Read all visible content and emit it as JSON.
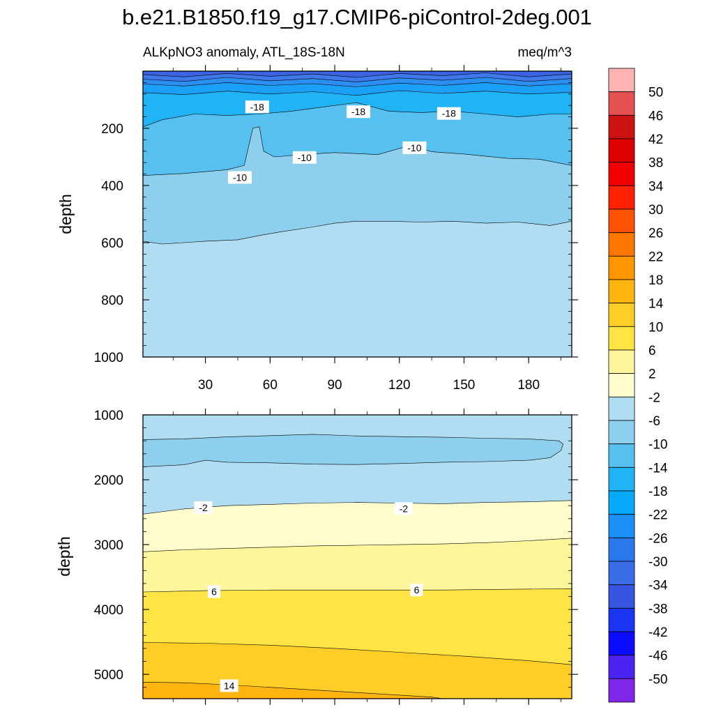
{
  "figure": {
    "title": "b.e21.B1850.f19_g17.CMIP6-piControl-2deg.001",
    "subtitle_left": "ALKpNO3 anomaly, ATL_18S-18N",
    "subtitle_right": "meq/m^3"
  },
  "chart_data": [
    {
      "type": "heatmap",
      "panel": "upper",
      "title": "ALKpNO3 anomaly, ATL_18S-18N",
      "units": "meq/m^3",
      "xlabel": "",
      "ylabel": "depth",
      "xlim": [
        1,
        200
      ],
      "ylim": [
        0,
        1000
      ],
      "y_inverted": true,
      "xticks": [
        30,
        60,
        90,
        120,
        150,
        180
      ],
      "yticks": [
        200,
        400,
        600,
        800,
        1000
      ],
      "bands": [
        {
          "lower": -38,
          "upper": -34,
          "color": "#3C63E0",
          "top": [
            [
              1,
              0
            ],
            [
              200,
              0
            ]
          ],
          "bottom": [
            [
              1,
              12
            ],
            [
              20,
              20
            ],
            [
              40,
              8
            ],
            [
              60,
              18
            ],
            [
              80,
              10
            ],
            [
              100,
              22
            ],
            [
              120,
              8
            ],
            [
              140,
              16
            ],
            [
              160,
              6
            ],
            [
              180,
              20
            ],
            [
              200,
              10
            ]
          ]
        },
        {
          "lower": -34,
          "upper": -30,
          "color": "#3F78EA",
          "top": [
            [
              1,
              0
            ],
            [
              200,
              0
            ]
          ],
          "bottom": [
            [
              1,
              28
            ],
            [
              20,
              36
            ],
            [
              40,
              22
            ],
            [
              60,
              34
            ],
            [
              80,
              26
            ],
            [
              100,
              38
            ],
            [
              120,
              24
            ],
            [
              140,
              32
            ],
            [
              160,
              22
            ],
            [
              180,
              36
            ],
            [
              200,
              26
            ]
          ]
        },
        {
          "lower": -30,
          "upper": -26,
          "color": "#2B8FF2",
          "top": [
            [
              1,
              0
            ],
            [
              200,
              0
            ]
          ],
          "bottom": [
            [
              1,
              45
            ],
            [
              20,
              52
            ],
            [
              40,
              40
            ],
            [
              60,
              50
            ],
            [
              80,
              44
            ],
            [
              100,
              55
            ],
            [
              120,
              42
            ],
            [
              140,
              50
            ],
            [
              160,
              40
            ],
            [
              180,
              52
            ],
            [
              200,
              44
            ]
          ]
        },
        {
          "lower": -26,
          "upper": -22,
          "color": "#1AA1F7",
          "top": [
            [
              1,
              0
            ],
            [
              200,
              0
            ]
          ],
          "bottom": [
            [
              1,
              75
            ],
            [
              20,
              82
            ],
            [
              40,
              70
            ],
            [
              60,
              80
            ],
            [
              80,
              72
            ],
            [
              100,
              85
            ],
            [
              120,
              68
            ],
            [
              140,
              78
            ],
            [
              160,
              70
            ],
            [
              180,
              80
            ],
            [
              200,
              74
            ]
          ]
        },
        {
          "lower": -22,
          "upper": -18,
          "color": "#20B4F6",
          "top": [
            [
              1,
              0
            ],
            [
              200,
              0
            ]
          ],
          "bottom": [
            [
              1,
              195
            ],
            [
              10,
              170
            ],
            [
              25,
              150
            ],
            [
              40,
              155
            ],
            [
              55,
              150
            ],
            [
              70,
              140
            ],
            [
              85,
              125
            ],
            [
              100,
              110
            ],
            [
              115,
              140
            ],
            [
              130,
              145
            ],
            [
              145,
              140
            ],
            [
              160,
              150
            ],
            [
              175,
              160
            ],
            [
              190,
              150
            ],
            [
              200,
              150
            ]
          ]
        },
        {
          "lower": -18,
          "upper": -14,
          "color": "#56C0F0",
          "top": [
            [
              1,
              0
            ],
            [
              200,
              0
            ]
          ],
          "bottom": [
            [
              1,
              365
            ],
            [
              20,
              358
            ],
            [
              40,
              345
            ],
            [
              48,
              330
            ],
            [
              52,
              200
            ],
            [
              55,
              195
            ],
            [
              57,
              280
            ],
            [
              62,
              300
            ],
            [
              75,
              292
            ],
            [
              90,
              285
            ],
            [
              110,
              292
            ],
            [
              125,
              260
            ],
            [
              135,
              282
            ],
            [
              150,
              290
            ],
            [
              170,
              305
            ],
            [
              185,
              308
            ],
            [
              200,
              330
            ]
          ]
        },
        {
          "lower": -14,
          "upper": -10,
          "color": "#8FCFEE",
          "top": [
            [
              1,
              0
            ],
            [
              200,
              0
            ]
          ],
          "bottom": [
            [
              1,
              595
            ],
            [
              10,
              605
            ],
            [
              20,
              600
            ],
            [
              30,
              595
            ],
            [
              45,
              590
            ],
            [
              55,
              575
            ],
            [
              65,
              562
            ],
            [
              80,
              545
            ],
            [
              90,
              532
            ],
            [
              100,
              525
            ],
            [
              115,
              525
            ],
            [
              130,
              528
            ],
            [
              145,
              525
            ],
            [
              160,
              532
            ],
            [
              175,
              528
            ],
            [
              190,
              540
            ],
            [
              200,
              525
            ]
          ]
        },
        {
          "lower": -10,
          "upper": -6,
          "color": "#B1DDF3",
          "top": [
            [
              1,
              0
            ],
            [
              200,
              0
            ]
          ],
          "bottom": [
            [
              1,
              1000
            ],
            [
              200,
              1000
            ]
          ]
        }
      ],
      "contour_labels": [
        {
          "text": "-18",
          "x": 54,
          "y": 125
        },
        {
          "text": "-18",
          "x": 101,
          "y": 142
        },
        {
          "text": "-18",
          "x": 143,
          "y": 148
        },
        {
          "text": "-10",
          "x": 76,
          "y": 302
        },
        {
          "text": "-10",
          "x": 127,
          "y": 268
        },
        {
          "text": "-10",
          "x": 46,
          "y": 372
        }
      ]
    },
    {
      "type": "heatmap",
      "panel": "lower",
      "title": "",
      "xlabel": "",
      "ylabel": "depth",
      "xlim": [
        1,
        200
      ],
      "ylim": [
        1000,
        5375
      ],
      "y_inverted": true,
      "yticks": [
        1000,
        2000,
        3000,
        4000,
        5000
      ],
      "bands": [
        {
          "lower": -10,
          "upper": -6,
          "color": "#B1DDF3",
          "top": [
            [
              1,
              1000
            ],
            [
              200,
              1000
            ]
          ],
          "bottom": [
            [
              1,
              5375
            ],
            [
              200,
              5375
            ]
          ]
        },
        {
          "lower": -14,
          "upper": -10,
          "color": "#8FCFEE",
          "top": [
            [
              1,
              1380
            ],
            [
              20,
              1370
            ],
            [
              40,
              1340
            ],
            [
              60,
              1320
            ],
            [
              80,
              1300
            ],
            [
              100,
              1325
            ],
            [
              120,
              1335
            ],
            [
              140,
              1345
            ],
            [
              160,
              1360
            ],
            [
              180,
              1370
            ],
            [
              194,
              1400
            ],
            [
              196,
              1450
            ],
            [
              195,
              1550
            ]
          ],
          "bottom": [
            [
              1,
              1800
            ],
            [
              20,
              1770
            ],
            [
              30,
              1700
            ],
            [
              40,
              1730
            ],
            [
              60,
              1740
            ],
            [
              80,
              1760
            ],
            [
              100,
              1765
            ],
            [
              120,
              1750
            ],
            [
              140,
              1730
            ],
            [
              160,
              1720
            ],
            [
              180,
              1700
            ],
            [
              190,
              1660
            ],
            [
              195,
              1550
            ]
          ]
        },
        {
          "lower": -2,
          "upper": 2,
          "color": "#FFFDCB",
          "top": [
            [
              1,
              2530
            ],
            [
              20,
              2450
            ],
            [
              40,
              2400
            ],
            [
              60,
              2380
            ],
            [
              80,
              2360
            ],
            [
              100,
              2350
            ],
            [
              120,
              2360
            ],
            [
              140,
              2370
            ],
            [
              160,
              2350
            ],
            [
              180,
              2340
            ],
            [
              200,
              2320
            ]
          ],
          "bottom": [
            [
              1,
              5375
            ],
            [
              200,
              5375
            ]
          ]
        },
        {
          "lower": 2,
          "upper": 6,
          "color": "#FFF59B",
          "top": [
            [
              1,
              3110
            ],
            [
              20,
              3080
            ],
            [
              40,
              3060
            ],
            [
              60,
              3040
            ],
            [
              80,
              3020
            ],
            [
              100,
              3010
            ],
            [
              120,
              3000
            ],
            [
              140,
              2990
            ],
            [
              160,
              2970
            ],
            [
              180,
              2940
            ],
            [
              200,
              2900
            ]
          ],
          "bottom": [
            [
              1,
              5375
            ],
            [
              200,
              5375
            ]
          ]
        },
        {
          "lower": 6,
          "upper": 10,
          "color": "#FFE443",
          "top": [
            [
              1,
              3730
            ],
            [
              30,
              3710
            ],
            [
              60,
              3700
            ],
            [
              100,
              3700
            ],
            [
              140,
              3700
            ],
            [
              170,
              3690
            ],
            [
              200,
              3680
            ]
          ],
          "bottom": [
            [
              1,
              5375
            ],
            [
              200,
              5375
            ]
          ]
        },
        {
          "lower": 10,
          "upper": 14,
          "color": "#FFCE26",
          "top": [
            [
              1,
              4510
            ],
            [
              30,
              4520
            ],
            [
              60,
              4550
            ],
            [
              90,
              4600
            ],
            [
              120,
              4660
            ],
            [
              150,
              4720
            ],
            [
              180,
              4790
            ],
            [
              200,
              4850
            ]
          ],
          "bottom": [
            [
              1,
              5375
            ],
            [
              200,
              5375
            ]
          ]
        },
        {
          "lower": 14,
          "upper": 18,
          "color": "#FFB40F",
          "top": [
            [
              1,
              5120
            ],
            [
              20,
              5130
            ],
            [
              40,
              5160
            ],
            [
              60,
              5200
            ],
            [
              80,
              5240
            ],
            [
              100,
              5280
            ],
            [
              120,
              5320
            ],
            [
              135,
              5350
            ],
            [
              140,
              5375
            ],
            [
              1,
              5375
            ]
          ],
          "bottom": [
            [
              1,
              5375
            ],
            [
              200,
              5375
            ]
          ]
        }
      ],
      "contour_labels": [
        {
          "text": "-2",
          "x": 29,
          "y": 2430
        },
        {
          "text": "-2",
          "x": 122,
          "y": 2445
        },
        {
          "text": "6",
          "x": 34,
          "y": 3725
        },
        {
          "text": "6",
          "x": 128,
          "y": 3700
        },
        {
          "text": "14",
          "x": 41,
          "y": 5175
        }
      ]
    }
  ],
  "colorbar": {
    "labels": [
      "50",
      "46",
      "42",
      "38",
      "34",
      "30",
      "26",
      "22",
      "18",
      "14",
      "10",
      "6",
      "2",
      "-2",
      "-6",
      "-10",
      "-14",
      "-18",
      "-22",
      "-26",
      "-30",
      "-34",
      "-38",
      "-42",
      "-46",
      "-50"
    ],
    "colors": [
      "#FFB3B3",
      "#E55151",
      "#CD1212",
      "#DD0000",
      "#F20000",
      "#FF2100",
      "#FF5200",
      "#FF7700",
      "#FF9500",
      "#FFB40F",
      "#FFCE26",
      "#FFE443",
      "#FFF59B",
      "#FFFDCB",
      "#B1DDF3",
      "#8FCFEE",
      "#56C0F0",
      "#20B4F6",
      "#04A9F9",
      "#1B90F8",
      "#2B78EC",
      "#3A6CE8",
      "#3755E0",
      "#1B36F2",
      "#0B0CFD",
      "#4B24F2",
      "#7F26E8"
    ]
  }
}
